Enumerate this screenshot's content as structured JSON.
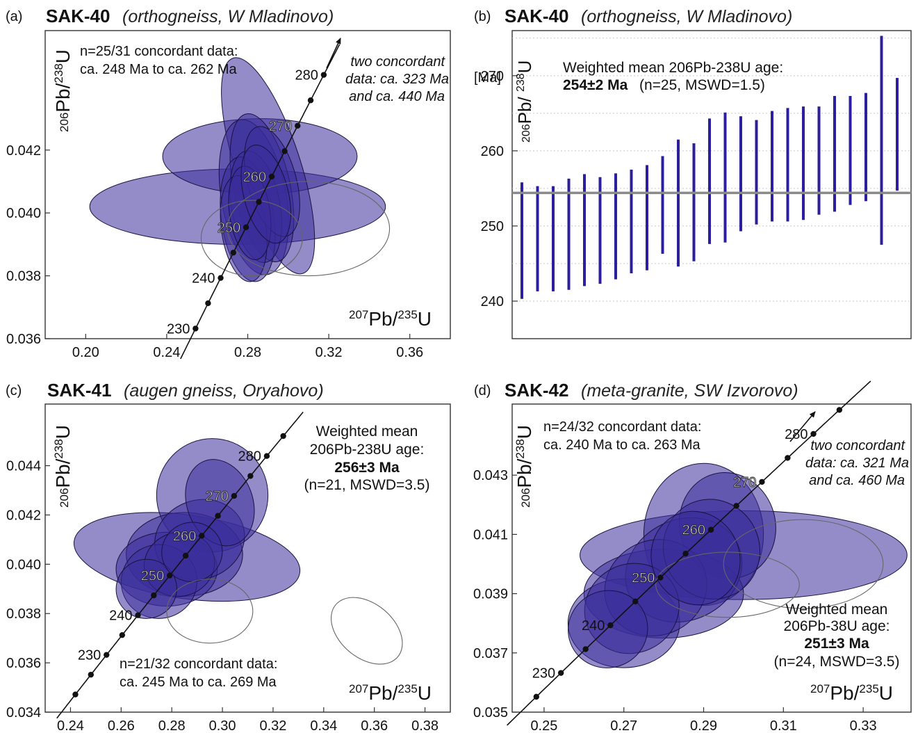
{
  "chart_data": [
    {
      "type": "scatter",
      "panel_label": "(a)",
      "sample": "SAK-40",
      "subtitle": "(orthogneiss, W Mladinovo)",
      "xlabel": "207Pb/235U",
      "ylabel": "206Pb/238U",
      "xlim": [
        0.18,
        0.38
      ],
      "ylim": [
        0.036,
        0.0458
      ],
      "x_ticks": [
        "0.20",
        "0.24",
        "0.28",
        "0.32",
        "0.36"
      ],
      "y_ticks": [
        "0.036",
        "0.038",
        "0.040",
        "0.042"
      ],
      "concordia": {
        "ages": [
          230,
          235,
          240,
          245,
          250,
          255,
          260,
          265,
          270,
          275,
          280
        ],
        "labels": [
          {
            "age": 230,
            "text": "230"
          },
          {
            "age": 240,
            "text": "240"
          },
          {
            "age": 250,
            "text": "250"
          },
          {
            "age": 260,
            "text": "260"
          },
          {
            "age": 270,
            "text": "270"
          },
          {
            "age": 280,
            "text": "280"
          }
        ]
      },
      "annotations": [
        {
          "text": "n=25/31 concordant data:"
        },
        {
          "text": "ca. 248 Ma to ca. 262 Ma"
        },
        {
          "text": "two concordant"
        },
        {
          "text": "data: ca. 323 Ma"
        },
        {
          "text": "and ca. 440 Ma"
        }
      ],
      "ellipses": [
        {
          "cx": 0.275,
          "cy": 0.0402,
          "rx": 0.073,
          "ry": 0.0012,
          "rot": 0
        },
        {
          "cx": 0.286,
          "cy": 0.0418,
          "rx": 0.048,
          "ry": 0.0012,
          "rot": 0
        },
        {
          "cx": 0.29,
          "cy": 0.0415,
          "rx": 0.016,
          "ry": 0.0036,
          "rot": 18
        },
        {
          "cx": 0.283,
          "cy": 0.0405,
          "rx": 0.016,
          "ry": 0.0025,
          "rot": 10
        },
        {
          "cx": 0.287,
          "cy": 0.0408,
          "rx": 0.014,
          "ry": 0.0024,
          "rot": 12
        },
        {
          "cx": 0.28,
          "cy": 0.0398,
          "rx": 0.013,
          "ry": 0.002,
          "rot": 8
        },
        {
          "cx": 0.284,
          "cy": 0.0402,
          "rx": 0.012,
          "ry": 0.0018,
          "rot": 10
        },
        {
          "cx": 0.278,
          "cy": 0.0395,
          "rx": 0.011,
          "ry": 0.0017,
          "rot": 8
        },
        {
          "cx": 0.292,
          "cy": 0.041,
          "rx": 0.012,
          "ry": 0.0018,
          "rot": 15
        },
        {
          "cx": 0.281,
          "cy": 0.04,
          "rx": 0.01,
          "ry": 0.0015,
          "rot": 8
        },
        {
          "cx": 0.289,
          "cy": 0.0406,
          "rx": 0.011,
          "ry": 0.0016,
          "rot": 14
        }
      ],
      "outline_ellipses": [
        {
          "cx": 0.282,
          "cy": 0.0392,
          "rx": 0.025,
          "ry": 0.0012,
          "rot": 0
        },
        {
          "cx": 0.31,
          "cy": 0.0395,
          "rx": 0.04,
          "ry": 0.0015,
          "rot": 0
        }
      ]
    },
    {
      "type": "bar",
      "panel_label": "(b)",
      "sample": "SAK-40",
      "subtitle": "(orthogneiss, W Mladinovo)",
      "ylabel": "206Pb/ 238U",
      "yunit": "[Ma]",
      "ylim": [
        235,
        276
      ],
      "y_ticks": [
        "240",
        "250",
        "260",
        "270"
      ],
      "weighted_mean_label": "Weighted mean 206Pb-238U age:",
      "weighted_mean_value": "254±2 Ma",
      "weighted_mean_stats": "(n=25, MSWD=1.5)",
      "mean_line": 254.4,
      "bars": [
        {
          "low": 240.3,
          "high": 255.8
        },
        {
          "low": 241.3,
          "high": 255.3
        },
        {
          "low": 241.3,
          "high": 255.3
        },
        {
          "low": 241.5,
          "high": 256.3
        },
        {
          "low": 242.0,
          "high": 256.9
        },
        {
          "low": 242.3,
          "high": 256.5
        },
        {
          "low": 242.9,
          "high": 257.0
        },
        {
          "low": 243.7,
          "high": 257.5
        },
        {
          "low": 244.1,
          "high": 258.1
        },
        {
          "low": 246.3,
          "high": 259.3
        },
        {
          "low": 244.6,
          "high": 261.5
        },
        {
          "low": 245.3,
          "high": 261.0
        },
        {
          "low": 247.6,
          "high": 264.3
        },
        {
          "low": 247.8,
          "high": 265.1
        },
        {
          "low": 249.3,
          "high": 264.6
        },
        {
          "low": 250.2,
          "high": 264.1
        },
        {
          "low": 250.6,
          "high": 265.3
        },
        {
          "low": 250.6,
          "high": 265.7
        },
        {
          "low": 250.8,
          "high": 265.9
        },
        {
          "low": 251.5,
          "high": 265.9
        },
        {
          "low": 251.9,
          "high": 267.3
        },
        {
          "low": 252.8,
          "high": 267.3
        },
        {
          "low": 253.3,
          "high": 267.7
        },
        {
          "low": 247.5,
          "high": 275.3
        },
        {
          "low": 254.7,
          "high": 269.7
        }
      ]
    },
    {
      "type": "scatter",
      "panel_label": "(c)",
      "sample": "SAK-41",
      "subtitle": "(augen gneiss, Oryahovo)",
      "xlabel": "207Pb/235U",
      "ylabel": "206Pb/238U",
      "xlim": [
        0.23,
        0.39
      ],
      "ylim": [
        0.034,
        0.0465
      ],
      "x_ticks": [
        "0.24",
        "0.26",
        "0.28",
        "0.30",
        "0.32",
        "0.34",
        "0.36",
        "0.38"
      ],
      "y_ticks": [
        "0.034",
        "0.036",
        "0.038",
        "0.040",
        "0.042",
        "0.044"
      ],
      "concordia": {
        "ages": [
          220,
          225,
          230,
          235,
          240,
          245,
          250,
          255,
          260,
          265,
          270,
          275,
          280,
          285
        ],
        "labels": [
          {
            "age": 230,
            "text": "230"
          },
          {
            "age": 240,
            "text": "240"
          },
          {
            "age": 250,
            "text": "250"
          },
          {
            "age": 260,
            "text": "260"
          },
          {
            "age": 270,
            "text": "270"
          },
          {
            "age": 280,
            "text": "280"
          }
        ]
      },
      "annotations": [
        {
          "text": "Weighted mean"
        },
        {
          "text": "206Pb-238U age:"
        },
        {
          "text": "256±3 Ma"
        },
        {
          "text": "(n=21, MSWD=3.5)"
        },
        {
          "text": "n=21/32 concordant data:"
        },
        {
          "text": "ca. 245 Ma to ca. 269 Ma"
        }
      ],
      "ellipses": [
        {
          "cx": 0.286,
          "cy": 0.0403,
          "rx": 0.045,
          "ry": 0.0017,
          "rot": -8
        },
        {
          "cx": 0.296,
          "cy": 0.0428,
          "rx": 0.022,
          "ry": 0.0023,
          "rot": 0
        },
        {
          "cx": 0.285,
          "cy": 0.0404,
          "rx": 0.023,
          "ry": 0.0017,
          "rot": 0
        },
        {
          "cx": 0.278,
          "cy": 0.0398,
          "rx": 0.02,
          "ry": 0.0015,
          "rot": 0
        },
        {
          "cx": 0.291,
          "cy": 0.041,
          "rx": 0.018,
          "ry": 0.0016,
          "rot": 20
        },
        {
          "cx": 0.275,
          "cy": 0.0393,
          "rx": 0.015,
          "ry": 0.0015,
          "rot": 10
        },
        {
          "cx": 0.299,
          "cy": 0.0425,
          "rx": 0.013,
          "ry": 0.0018,
          "rot": 20
        },
        {
          "cx": 0.283,
          "cy": 0.04,
          "rx": 0.014,
          "ry": 0.0013,
          "rot": 15
        },
        {
          "cx": 0.27,
          "cy": 0.039,
          "rx": 0.012,
          "ry": 0.0012,
          "rot": 10
        },
        {
          "cx": 0.288,
          "cy": 0.0405,
          "rx": 0.012,
          "ry": 0.0012,
          "rot": 20
        }
      ],
      "outline_ellipses": [
        {
          "cx": 0.295,
          "cy": 0.0381,
          "rx": 0.017,
          "ry": 0.0013,
          "rot": 0
        },
        {
          "cx": 0.357,
          "cy": 0.0373,
          "rx": 0.016,
          "ry": 0.0011,
          "rot": -40
        }
      ]
    },
    {
      "type": "scatter",
      "panel_label": "(d)",
      "sample": "SAK-42",
      "subtitle": "(meta-granite, SW Izvorovo)",
      "xlabel": "207Pb/235U",
      "ylabel": "206Pb/238U",
      "xlim": [
        0.242,
        0.342
      ],
      "ylim": [
        0.035,
        0.0454
      ],
      "x_ticks": [
        "0.25",
        "0.27",
        "0.29",
        "0.31",
        "0.33"
      ],
      "y_ticks": [
        "0.035",
        "0.037",
        "0.039",
        "0.041",
        "0.043"
      ],
      "concordia": {
        "ages": [
          225,
          230,
          235,
          240,
          245,
          250,
          255,
          260,
          265,
          270,
          275,
          280,
          285
        ],
        "labels": [
          {
            "age": 230,
            "text": "230"
          },
          {
            "age": 240,
            "text": "240"
          },
          {
            "age": 250,
            "text": "250"
          },
          {
            "age": 260,
            "text": "260"
          },
          {
            "age": 270,
            "text": "270"
          },
          {
            "age": 280,
            "text": "280"
          }
        ]
      },
      "annotations": [
        {
          "text": "n=24/32 concordant data:"
        },
        {
          "text": "ca. 240 Ma to ca. 263 Ma"
        },
        {
          "text": "two concordant"
        },
        {
          "text": "data: ca. 321 Ma"
        },
        {
          "text": "and ca. 460 Ma"
        },
        {
          "text": "Weighted mean"
        },
        {
          "text": "206Pb-38U age:"
        },
        {
          "text": "251±3 Ma"
        },
        {
          "text": "(n=24, MSWD=3.5)"
        }
      ],
      "ellipses": [
        {
          "cx": 0.3,
          "cy": 0.0403,
          "rx": 0.041,
          "ry": 0.0015,
          "rot": 0
        },
        {
          "cx": 0.29,
          "cy": 0.041,
          "rx": 0.015,
          "ry": 0.0024,
          "rot": 0
        },
        {
          "cx": 0.296,
          "cy": 0.0413,
          "rx": 0.012,
          "ry": 0.0018,
          "rot": 15
        },
        {
          "cx": 0.28,
          "cy": 0.039,
          "rx": 0.02,
          "ry": 0.0015,
          "rot": 0
        },
        {
          "cx": 0.27,
          "cy": 0.038,
          "rx": 0.014,
          "ry": 0.0015,
          "rot": 0
        },
        {
          "cx": 0.285,
          "cy": 0.0398,
          "rx": 0.015,
          "ry": 0.0017,
          "rot": 25
        },
        {
          "cx": 0.278,
          "cy": 0.0392,
          "rx": 0.013,
          "ry": 0.0016,
          "rot": 25
        },
        {
          "cx": 0.272,
          "cy": 0.0385,
          "rx": 0.012,
          "ry": 0.0015,
          "rot": 25
        },
        {
          "cx": 0.292,
          "cy": 0.0405,
          "rx": 0.012,
          "ry": 0.0017,
          "rot": 25
        },
        {
          "cx": 0.266,
          "cy": 0.0378,
          "rx": 0.01,
          "ry": 0.0013,
          "rot": 20
        },
        {
          "cx": 0.288,
          "cy": 0.0402,
          "rx": 0.011,
          "ry": 0.0016,
          "rot": 25
        }
      ],
      "outline_ellipses": [
        {
          "cx": 0.296,
          "cy": 0.0393,
          "rx": 0.018,
          "ry": 0.0011,
          "rot": 0
        },
        {
          "cx": 0.315,
          "cy": 0.04,
          "rx": 0.02,
          "ry": 0.0015,
          "rot": 0
        }
      ]
    }
  ]
}
